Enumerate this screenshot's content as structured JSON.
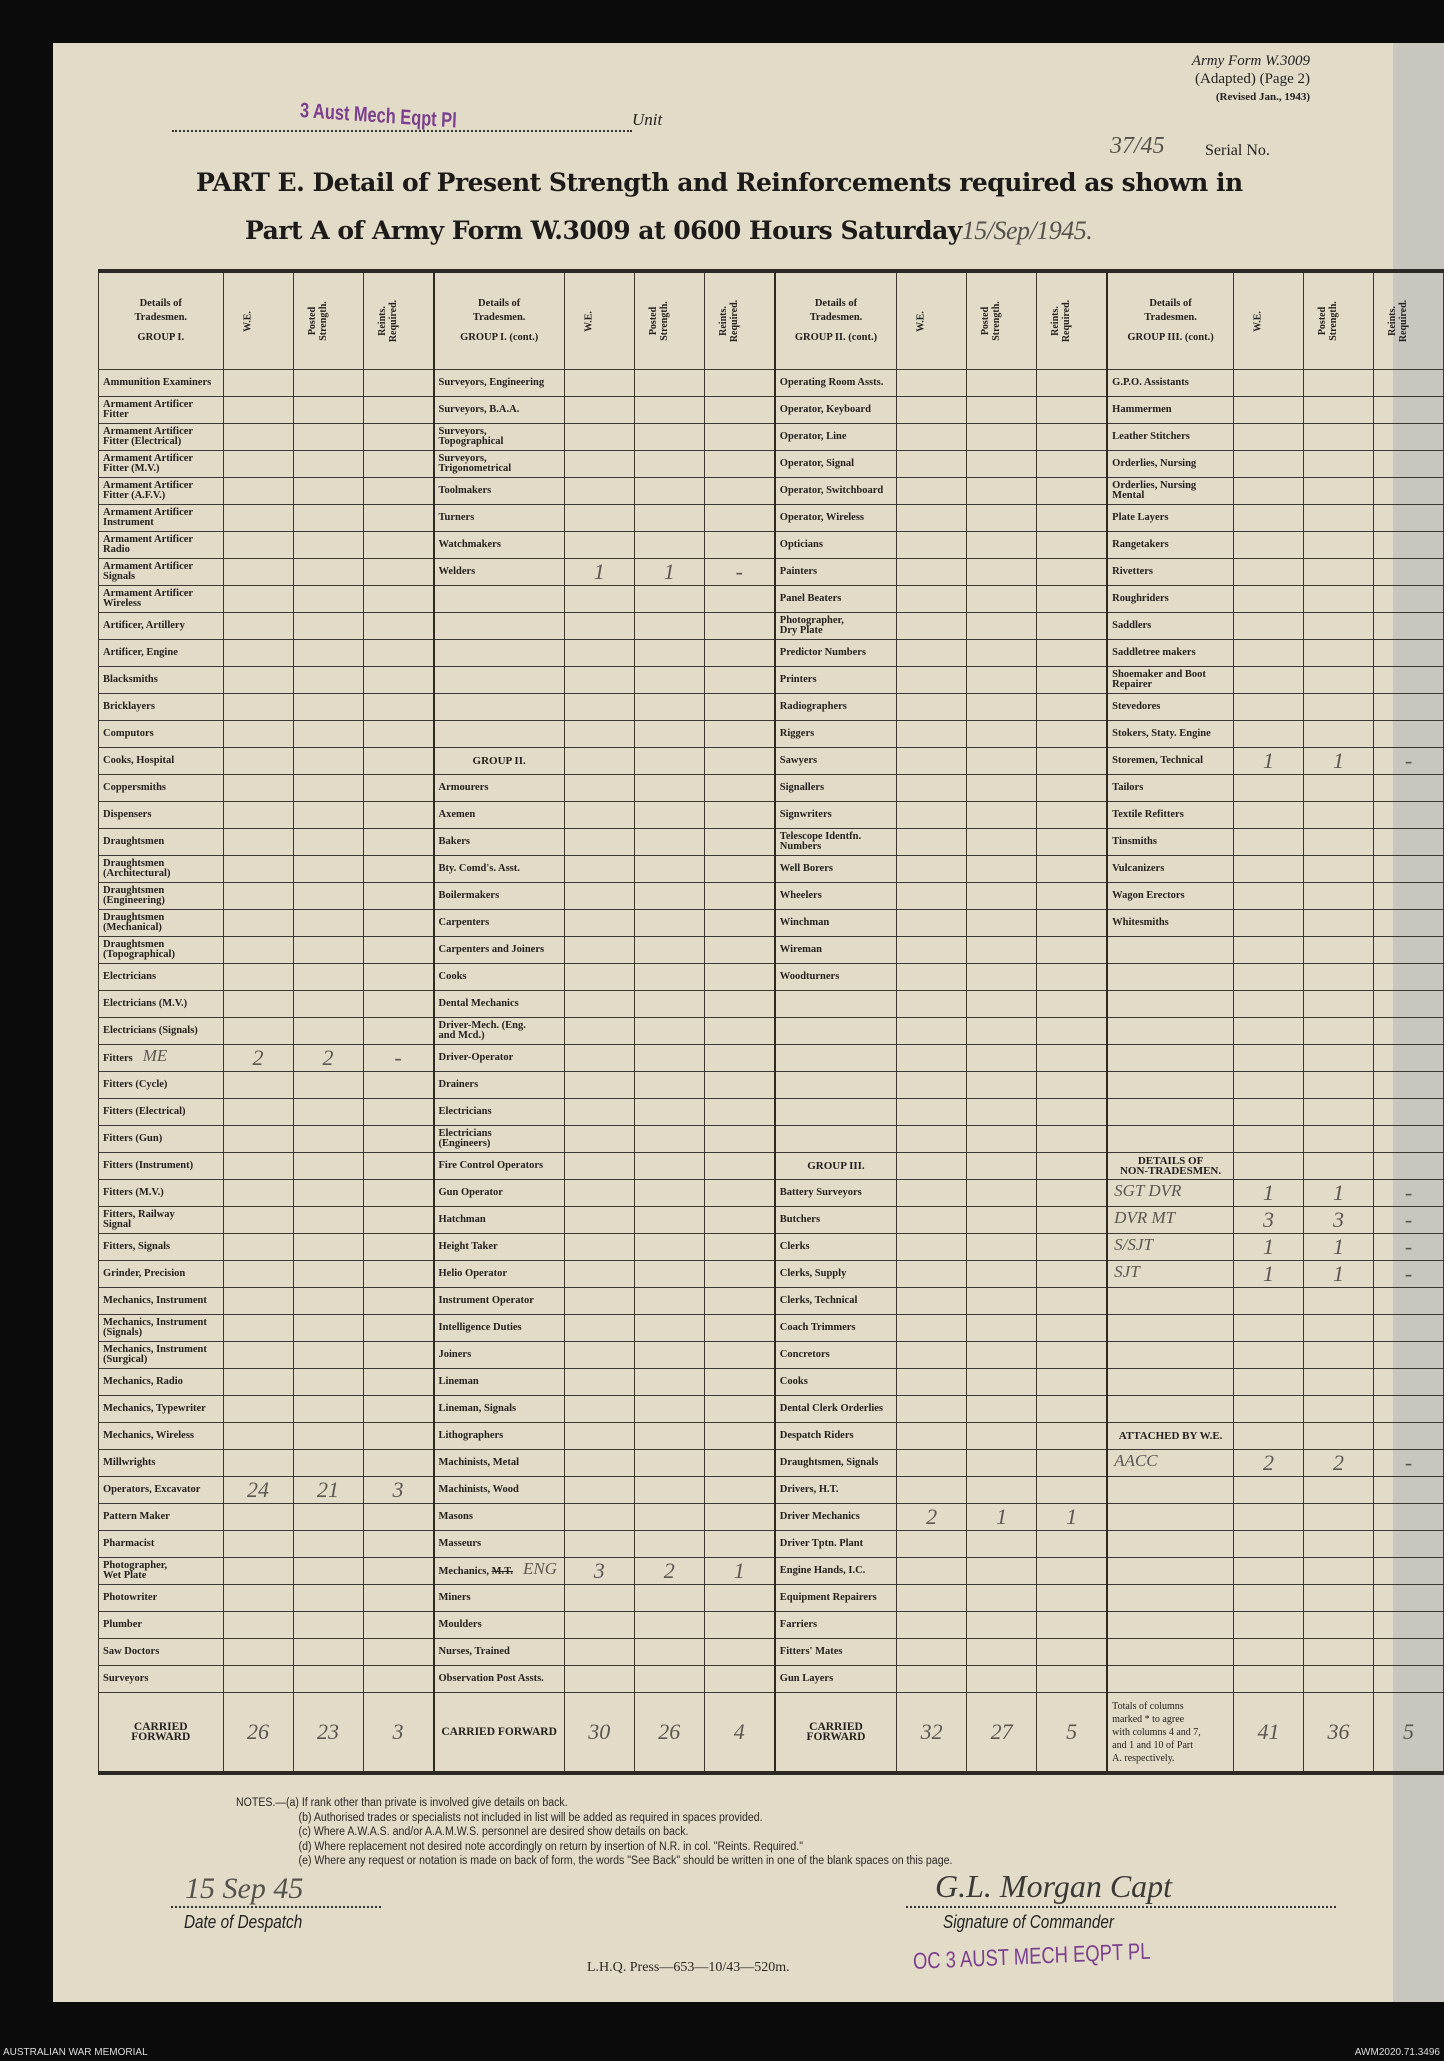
{
  "header": {
    "unit_value": "3 Aust Mech Eqpt Pl",
    "unit_label": "Unit",
    "form_line1": "Army Form W.3009",
    "form_line2": "(Adapted) (Page 2)",
    "form_line3": "(Revised Jan., 1943)",
    "serial_value": "37/45",
    "serial_label": "Serial No.",
    "title_line1": "PART E.  Detail of Present Strength and Reinforcements required as shown in",
    "title_line2": "Part A of Army Form W.3009 at 0600 Hours Saturday",
    "title_date": "15/Sep/1945."
  },
  "table": {
    "col_headers": {
      "we": "W.E.",
      "ps": "Posted\nStrength.",
      "rr": "Reints.\nRequired."
    },
    "columns": [
      {
        "header": "Details of\nTradesmen.",
        "group": "GROUP I.",
        "rows": [
          {
            "n": "Ammunition Examiners"
          },
          {
            "n": "Armament Artificer\nFitter"
          },
          {
            "n": "Armament Artificer\nFitter (Electrical)"
          },
          {
            "n": "Armament Artificer\nFitter (M.V.)"
          },
          {
            "n": "Armament Artificer\nFitter (A.F.V.)"
          },
          {
            "n": "Armament Artificer\nInstrument"
          },
          {
            "n": "Armament Artificer\nRadio"
          },
          {
            "n": "Armament Artificer\nSignals"
          },
          {
            "n": "Armament Artificer\nWireless"
          },
          {
            "n": "Artificer, Artillery"
          },
          {
            "n": "Artificer, Engine"
          },
          {
            "n": "Blacksmiths"
          },
          {
            "n": "Bricklayers"
          },
          {
            "n": "Computors"
          },
          {
            "n": "Cooks, Hospital"
          },
          {
            "n": "Coppersmiths"
          },
          {
            "n": "Dispensers"
          },
          {
            "n": "Draughtsmen"
          },
          {
            "n": "Draughtsmen\n(Architectural)"
          },
          {
            "n": "Draughtsmen\n(Engineering)"
          },
          {
            "n": "Draughtsmen\n(Mechanical)"
          },
          {
            "n": "Draughtsmen\n(Topographical)"
          },
          {
            "n": "Electricians"
          },
          {
            "n": "Electricians (M.V.)"
          },
          {
            "n": "Electricians (Signals)"
          },
          {
            "n": "Fitters",
            "note": "ME",
            "we": "2",
            "ps": "2",
            "rr": "-"
          },
          {
            "n": "Fitters (Cycle)"
          },
          {
            "n": "Fitters (Electrical)"
          },
          {
            "n": "Fitters (Gun)"
          },
          {
            "n": "Fitters (Instrument)"
          },
          {
            "n": "Fitters (M.V.)"
          },
          {
            "n": "Fitters, Railway\nSignal"
          },
          {
            "n": "Fitters, Signals"
          },
          {
            "n": "Grinder, Precision"
          },
          {
            "n": "Mechanics, Instrument"
          },
          {
            "n": "Mechanics, Instrument\n(Signals)"
          },
          {
            "n": "Mechanics, Instrument\n(Surgical)"
          },
          {
            "n": "Mechanics, Radio"
          },
          {
            "n": "Mechanics, Typewriter"
          },
          {
            "n": "Mechanics, Wireless"
          },
          {
            "n": "Millwrights"
          },
          {
            "n": "Operators, Excavator",
            "we": "24",
            "ps": "21",
            "rr": "3"
          },
          {
            "n": "Pattern Maker"
          },
          {
            "n": "Pharmacist"
          },
          {
            "n": "Photographer,\nWet Plate"
          },
          {
            "n": "Photowriter"
          },
          {
            "n": "Plumber"
          },
          {
            "n": "Saw Doctors"
          },
          {
            "n": "Surveyors"
          }
        ],
        "carried": {
          "label": "CARRIED FORWARD",
          "we": "26",
          "ps": "23",
          "rr": "3"
        }
      },
      {
        "header": "Details of\nTradesmen.",
        "group": "GROUP I. (cont.)",
        "rows": [
          {
            "n": "Surveyors, Engineering"
          },
          {
            "n": "Surveyors, B.A.A."
          },
          {
            "n": "Surveyors,\nTopographical"
          },
          {
            "n": "Surveyors,\nTrigonometrical"
          },
          {
            "n": "Toolmakers"
          },
          {
            "n": "Turners"
          },
          {
            "n": "Watchmakers"
          },
          {
            "n": "Welders",
            "we": "1",
            "ps": "1",
            "rr": "-"
          },
          {},
          {},
          {},
          {},
          {},
          {},
          {
            "h": "GROUP II."
          },
          {
            "n": "Armourers"
          },
          {
            "n": "Axemen"
          },
          {
            "n": "Bakers"
          },
          {
            "n": "Bty. Comd's. Asst."
          },
          {
            "n": "Boilermakers"
          },
          {
            "n": "Carpenters"
          },
          {
            "n": "Carpenters and Joiners"
          },
          {
            "n": "Cooks"
          },
          {
            "n": "Dental Mechanics"
          },
          {
            "n": "Driver-Mech. (Eng.\nand Mcd.)"
          },
          {
            "n": "Driver-Operator"
          },
          {
            "n": "Drainers"
          },
          {
            "n": "Electricians"
          },
          {
            "n": "Electricians\n(Engineers)"
          },
          {
            "n": "Fire Control Operators"
          },
          {
            "n": "Gun Operator"
          },
          {
            "n": "Hatchman"
          },
          {
            "n": "Height Taker"
          },
          {
            "n": "Helio Operator"
          },
          {
            "n": "Instrument Operator"
          },
          {
            "n": "Intelligence Duties"
          },
          {
            "n": "Joiners"
          },
          {
            "n": "Lineman"
          },
          {
            "n": "Lineman, Signals"
          },
          {
            "n": "Lithographers"
          },
          {
            "n": "Machinists, Metal"
          },
          {
            "n": "Machinists, Wood"
          },
          {
            "n": "Masons"
          },
          {
            "n": "Masseurs"
          },
          {
            "n": "Mechanics,",
            "struck": "M.T.",
            "note": "ENG",
            "we": "3",
            "ps": "2",
            "rr": "1"
          },
          {
            "n": "Miners"
          },
          {
            "n": "Moulders"
          },
          {
            "n": "Nurses, Trained"
          },
          {
            "n": "Observation Post Assts."
          }
        ],
        "carried": {
          "label": "CARRIED FORWARD",
          "we": "30",
          "ps": "26",
          "rr": "4"
        }
      },
      {
        "header": "Details of\nTradesmen.",
        "group": "GROUP II. (cont.)",
        "rows": [
          {
            "n": "Operating Room Assts."
          },
          {
            "n": "Operator, Keyboard"
          },
          {
            "n": "Operator, Line"
          },
          {
            "n": "Operator, Signal"
          },
          {
            "n": "Operator, Switchboard"
          },
          {
            "n": "Operator, Wireless"
          },
          {
            "n": "Opticians"
          },
          {
            "n": "Painters"
          },
          {
            "n": "Panel Beaters"
          },
          {
            "n": "Photographer,\nDry Plate"
          },
          {
            "n": "Predictor Numbers"
          },
          {
            "n": "Printers"
          },
          {
            "n": "Radiographers"
          },
          {
            "n": "Riggers"
          },
          {
            "n": "Sawyers"
          },
          {
            "n": "Signallers"
          },
          {
            "n": "Signwriters"
          },
          {
            "n": "Telescope Identfn.\nNumbers"
          },
          {
            "n": "Well Borers"
          },
          {
            "n": "Wheelers"
          },
          {
            "n": "Winchman"
          },
          {
            "n": "Wireman"
          },
          {
            "n": "Woodturners"
          },
          {},
          {},
          {},
          {},
          {},
          {},
          {
            "h": "GROUP III."
          },
          {
            "n": "Battery Surveyors"
          },
          {
            "n": "Butchers"
          },
          {
            "n": "Clerks"
          },
          {
            "n": "Clerks, Supply"
          },
          {
            "n": "Clerks, Technical"
          },
          {
            "n": "Coach Trimmers"
          },
          {
            "n": "Concretors"
          },
          {
            "n": "Cooks"
          },
          {
            "n": "Dental Clerk Orderlies"
          },
          {
            "n": "Despatch Riders"
          },
          {
            "n": "Draughtsmen, Signals"
          },
          {
            "n": "Drivers, H.T."
          },
          {
            "n": "Driver Mechanics",
            "we": "2",
            "ps": "1",
            "rr": "1"
          },
          {
            "n": "Driver Tptn. Plant"
          },
          {
            "n": "Engine Hands, I.C."
          },
          {
            "n": "Equipment Repairers"
          },
          {
            "n": "Farriers"
          },
          {
            "n": "Fitters' Mates"
          },
          {
            "n": "Gun Layers"
          }
        ],
        "carried": {
          "label": "CARRIED FORWARD",
          "we": "32",
          "ps": "27",
          "rr": "5"
        }
      },
      {
        "header": "Details of\nTradesmen.",
        "group": "GROUP III. (cont.)",
        "rows": [
          {
            "n": "G.P.O. Assistants"
          },
          {
            "n": "Hammermen"
          },
          {
            "n": "Leather Stitchers"
          },
          {
            "n": "Orderlies, Nursing"
          },
          {
            "n": "Orderlies, Nursing\nMental"
          },
          {
            "n": "Plate Layers"
          },
          {
            "n": "Rangetakers"
          },
          {
            "n": "Rivetters"
          },
          {
            "n": "Roughriders"
          },
          {
            "n": "Saddlers"
          },
          {
            "n": "Saddletree makers"
          },
          {
            "n": "Shoemaker and Boot\nRepairer"
          },
          {
            "n": "Stevedores"
          },
          {
            "n": "Stokers, Staty. Engine"
          },
          {
            "n": "Storemen, Technical",
            "we": "1",
            "ps": "1",
            "rr": "-"
          },
          {
            "n": "Tailors"
          },
          {
            "n": "Textile Refitters"
          },
          {
            "n": "Tinsmiths"
          },
          {
            "n": "Vulcanizers"
          },
          {
            "n": "Wagon Erectors"
          },
          {
            "n": "Whitesmiths"
          },
          {},
          {},
          {},
          {},
          {},
          {},
          {},
          {},
          {
            "h": "DETAILS OF\nNON-TRADESMEN."
          },
          {
            "hw": "SGT DVR",
            "we": "1",
            "ps": "1",
            "rr": "-"
          },
          {
            "hw": "DVR MT",
            "we": "3",
            "ps": "3",
            "rr": "-"
          },
          {
            "hw": "S/SJT",
            "we": "1",
            "ps": "1",
            "rr": "-"
          },
          {
            "hw": "SJT",
            "we": "1",
            "ps": "1",
            "rr": "-"
          },
          {},
          {},
          {},
          {},
          {},
          {
            "h": "ATTACHED BY W.E."
          },
          {
            "hw": "AACC",
            "we": "2",
            "ps": "2",
            "rr": "-"
          },
          {},
          {},
          {},
          {},
          {},
          {},
          {},
          {}
        ],
        "carried": {
          "label": "Totals of columns\nmarked * to agree\nwith columns 4 and 7,\nand 1 and 10 of Part\nA. respectively.",
          "we": "41",
          "ps": "36",
          "rr": "5"
        }
      }
    ]
  },
  "notes": [
    "NOTES.—(a) If rank other than private is involved give details on back.",
    "(b) Authorised trades or specialists not included in list will be added as required in spaces provided.",
    "(c) Where A.W.A.S. and/or A.A.M.W.S. personnel are desired show details on back.",
    "(d) Where replacement not desired note accordingly on return by insertion of N.R. in col. \"Reints. Required.\"",
    "(e) Where any request or notation is made on back of form, the words \"See Back\" should be written in one of the blank spaces on this page."
  ],
  "footer": {
    "despatch_date": "15 Sep 45",
    "despatch_label": "Date of Despatch",
    "signature": "G.L. Morgan Capt",
    "signature_label": "Signature of Commander",
    "press": "L.H.Q.  Press—653—10/43—520m.",
    "stamp": "OC 3 AUST MECH EQPT PL",
    "archive_left": "AUSTRALIAN WAR MEMORIAL",
    "archive_right": "AWM2020.71.3496"
  },
  "colors": {
    "paper": "#e2dbc7",
    "stamp": "#7b3f8e",
    "ink": "#24211e",
    "pencil": "#5a5752"
  }
}
